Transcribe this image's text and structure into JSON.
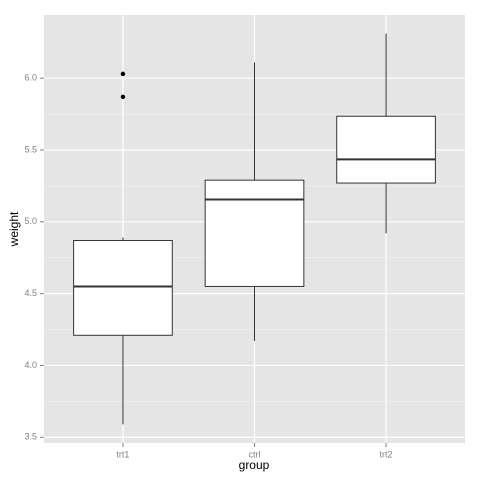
{
  "chart_data": {
    "type": "boxplot",
    "x_label": "group",
    "y_label": "weight",
    "categories": [
      "trt1",
      "ctrl",
      "trt2"
    ],
    "boxes": [
      {
        "min": 3.59,
        "q1": 4.21,
        "median": 4.55,
        "q3": 4.87,
        "max": 4.89,
        "outliers": [
          5.87,
          6.03
        ]
      },
      {
        "min": 4.17,
        "q1": 4.55,
        "median": 5.155,
        "q3": 5.29,
        "max": 6.11,
        "outliers": []
      },
      {
        "min": 4.92,
        "q1": 5.27,
        "median": 5.435,
        "q3": 5.735,
        "max": 6.31,
        "outliers": []
      }
    ],
    "ylim": [
      3.46,
      6.44
    ],
    "yticks": [
      3.5,
      {
        "value": 4,
        "label": "4.0"
      },
      4.5,
      {
        "value": 5,
        "label": "5.0"
      },
      5.5,
      {
        "value": 6,
        "label": "6.0"
      }
    ],
    "grid": true,
    "panel_color": "#e5e5e5",
    "box_fill": "#ffffff",
    "box_stroke": "#333333"
  }
}
